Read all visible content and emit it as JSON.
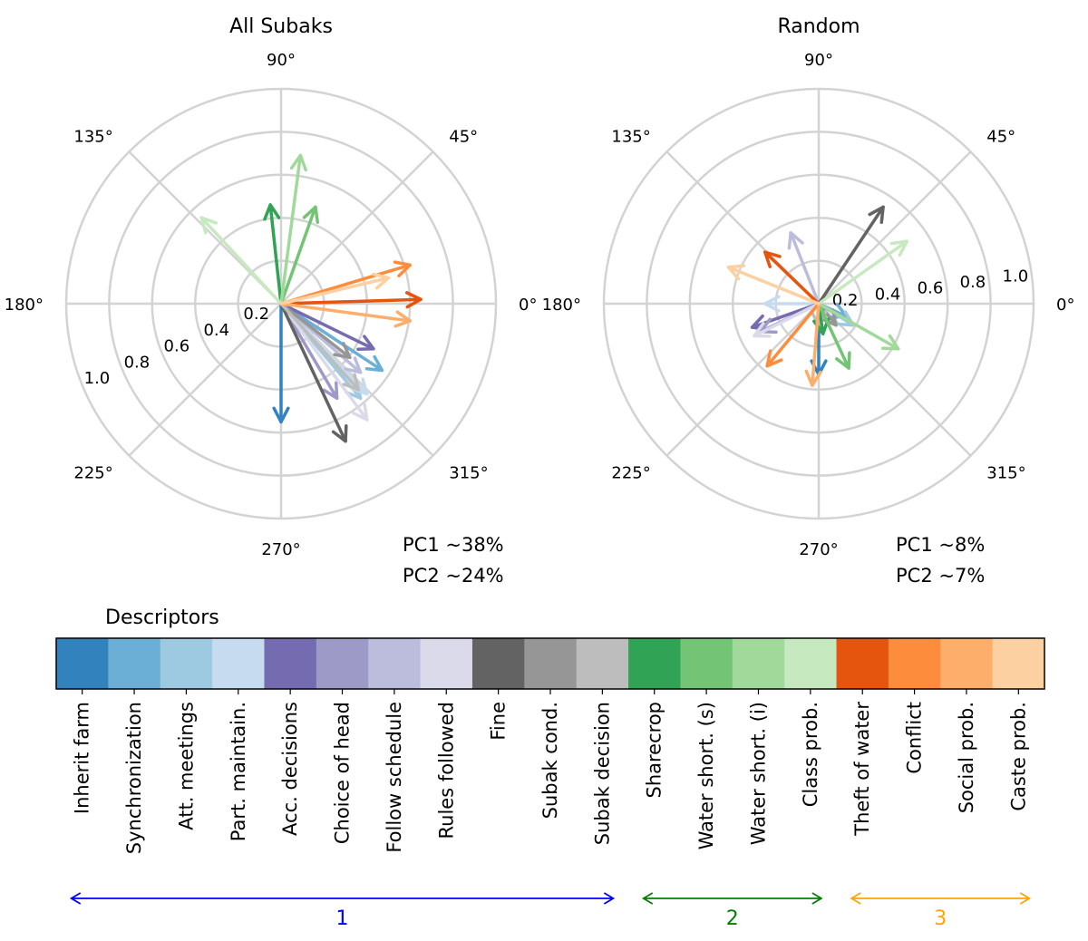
{
  "chart_data": [
    {
      "type": "polar-vector",
      "title": "All Subaks",
      "theta_tick_labels": [
        "0°",
        "45°",
        "90°",
        "135°",
        "180°",
        "225°",
        "270°",
        "315°"
      ],
      "r_tick_labels": [
        "0.2",
        "0.4",
        "0.6",
        "0.8",
        "1.0"
      ],
      "rlim": [
        0,
        1.0
      ],
      "variance_lines": [
        "PC1 ~38%",
        "PC2 ~24%"
      ],
      "vectors": [
        {
          "descriptor": "Inherit farm",
          "pc1": 0.0,
          "pc2": -0.55
        },
        {
          "descriptor": "Synchronization",
          "pc1": 0.47,
          "pc2": -0.31
        },
        {
          "descriptor": "Att. meetings",
          "pc1": 0.37,
          "pc2": -0.44
        },
        {
          "descriptor": "Part. maintain.",
          "pc1": 0.4,
          "pc2": -0.42
        },
        {
          "descriptor": "Acc. decisions",
          "pc1": 0.43,
          "pc2": -0.21
        },
        {
          "descriptor": "Choice of head",
          "pc1": 0.26,
          "pc2": -0.44
        },
        {
          "descriptor": "Follow schedule",
          "pc1": 0.37,
          "pc2": -0.32
        },
        {
          "descriptor": "Rules followed",
          "pc1": 0.4,
          "pc2": -0.54
        },
        {
          "descriptor": "Fine",
          "pc1": 0.3,
          "pc2": -0.64
        },
        {
          "descriptor": "Subak cond.",
          "pc1": 0.32,
          "pc2": -0.25
        },
        {
          "descriptor": "Subak decision",
          "pc1": 0.36,
          "pc2": -0.4
        },
        {
          "descriptor": "Sharecrop",
          "pc1": -0.05,
          "pc2": 0.46
        },
        {
          "descriptor": "Water short. (s)",
          "pc1": 0.16,
          "pc2": 0.45
        },
        {
          "descriptor": "Water short. (i)",
          "pc1": 0.09,
          "pc2": 0.69
        },
        {
          "descriptor": "Class prob.",
          "pc1": -0.37,
          "pc2": 0.4
        },
        {
          "descriptor": "Theft of water",
          "pc1": 0.65,
          "pc2": 0.02
        },
        {
          "descriptor": "Conflict",
          "pc1": 0.6,
          "pc2": 0.18
        },
        {
          "descriptor": "Social prob.",
          "pc1": 0.6,
          "pc2": -0.08
        },
        {
          "descriptor": "Caste prob.",
          "pc1": 0.5,
          "pc2": 0.12
        }
      ]
    },
    {
      "type": "polar-vector",
      "title": "Random",
      "theta_tick_labels": [
        "0°",
        "45°",
        "90°",
        "135°",
        "180°",
        "225°",
        "270°",
        "315°"
      ],
      "r_tick_labels": [
        "0.2",
        "0.4",
        "0.6",
        "0.8",
        "1.0"
      ],
      "rlim": [
        0,
        1.0
      ],
      "variance_lines": [
        "PC1 ~8%",
        "PC2 ~7%"
      ],
      "vectors": [
        {
          "descriptor": "Inherit farm",
          "pc1": 0.0,
          "pc2": -0.33
        },
        {
          "descriptor": "Synchronization",
          "pc1": 0.13,
          "pc2": -0.06
        },
        {
          "descriptor": "Att. meetings",
          "pc1": 0.16,
          "pc2": -0.1
        },
        {
          "descriptor": "Part. maintain.",
          "pc1": -0.25,
          "pc2": 0.0
        },
        {
          "descriptor": "Acc. decisions",
          "pc1": -0.31,
          "pc2": -0.11
        },
        {
          "descriptor": "Choice of head",
          "pc1": -0.27,
          "pc2": -0.13
        },
        {
          "descriptor": "Follow schedule",
          "pc1": -0.13,
          "pc2": 0.33
        },
        {
          "descriptor": "Rules followed",
          "pc1": -0.3,
          "pc2": -0.15
        },
        {
          "descriptor": "Fine",
          "pc1": 0.3,
          "pc2": 0.45
        },
        {
          "descriptor": "Subak cond.",
          "pc1": 0.08,
          "pc2": -0.1
        },
        {
          "descriptor": "Subak decision",
          "pc1": 0.0,
          "pc2": -0.1
        },
        {
          "descriptor": "Sharecrop",
          "pc1": 0.02,
          "pc2": -0.14
        },
        {
          "descriptor": "Water short. (s)",
          "pc1": 0.14,
          "pc2": -0.3
        },
        {
          "descriptor": "Water short. (i)",
          "pc1": 0.37,
          "pc2": -0.21
        },
        {
          "descriptor": "Class prob.",
          "pc1": 0.41,
          "pc2": 0.29
        },
        {
          "descriptor": "Theft of water",
          "pc1": -0.25,
          "pc2": 0.24
        },
        {
          "descriptor": "Conflict",
          "pc1": -0.24,
          "pc2": -0.29
        },
        {
          "descriptor": "Social prob.",
          "pc1": -0.03,
          "pc2": -0.38
        },
        {
          "descriptor": "Caste prob.",
          "pc1": -0.42,
          "pc2": 0.17
        }
      ]
    }
  ],
  "legend": {
    "title": "Descriptors",
    "descriptors": [
      {
        "label": "Inherit farm",
        "color": "#3182bd"
      },
      {
        "label": "Synchronization",
        "color": "#6baed6"
      },
      {
        "label": "Att. meetings",
        "color": "#9ecae1"
      },
      {
        "label": "Part. maintain.",
        "color": "#c6dbef"
      },
      {
        "label": "Acc. decisions",
        "color": "#756bb1"
      },
      {
        "label": "Choice of head",
        "color": "#9e9ac8"
      },
      {
        "label": "Follow schedule",
        "color": "#bcbddc"
      },
      {
        "label": "Rules followed",
        "color": "#dadaeb"
      },
      {
        "label": "Fine",
        "color": "#636363"
      },
      {
        "label": "Subak cond.",
        "color": "#969696"
      },
      {
        "label": "Subak decision",
        "color": "#bdbdbd"
      },
      {
        "label": "Sharecrop",
        "color": "#31a354"
      },
      {
        "label": "Water short. (s)",
        "color": "#74c476"
      },
      {
        "label": "Water short. (i)",
        "color": "#a1d99b"
      },
      {
        "label": "Class prob.",
        "color": "#c7e9c0"
      },
      {
        "label": "Theft of water",
        "color": "#e6550d"
      },
      {
        "label": "Conflict",
        "color": "#fd8d3c"
      },
      {
        "label": "Social prob.",
        "color": "#fdae6b"
      },
      {
        "label": "Caste prob.",
        "color": "#fdd0a2"
      }
    ],
    "groups": [
      {
        "label": "1",
        "color": "#0000ff",
        "from_index": 0,
        "to_index": 10
      },
      {
        "label": "2",
        "color": "#008000",
        "from_index": 11,
        "to_index": 14
      },
      {
        "label": "3",
        "color": "#ffa500",
        "from_index": 15,
        "to_index": 18
      }
    ]
  },
  "grid_color": "#d3d3d3"
}
